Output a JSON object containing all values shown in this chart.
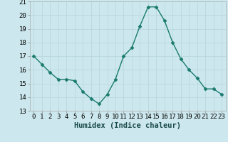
{
  "x": [
    0,
    1,
    2,
    3,
    4,
    5,
    6,
    7,
    8,
    9,
    10,
    11,
    12,
    13,
    14,
    15,
    16,
    17,
    18,
    19,
    20,
    21,
    22,
    23
  ],
  "y": [
    17.0,
    16.4,
    15.8,
    15.3,
    15.3,
    15.2,
    14.4,
    13.9,
    13.5,
    14.2,
    15.3,
    17.0,
    17.6,
    19.2,
    20.6,
    20.6,
    19.6,
    18.0,
    16.8,
    16.0,
    15.4,
    14.6,
    14.6,
    14.2
  ],
  "ylim": [
    13,
    21
  ],
  "xlim": [
    -0.5,
    23.5
  ],
  "yticks": [
    13,
    14,
    15,
    16,
    17,
    18,
    19,
    20,
    21
  ],
  "xtick_labels": [
    "0",
    "1",
    "2",
    "3",
    "4",
    "5",
    "6",
    "7",
    "8",
    "9",
    "10",
    "11",
    "12",
    "13",
    "14",
    "15",
    "16",
    "17",
    "18",
    "19",
    "20",
    "21",
    "22",
    "23"
  ],
  "xlabel": "Humidex (Indice chaleur)",
  "line_color": "#1a7a6e",
  "marker": "D",
  "marker_size": 2.5,
  "background_color": "#cce8ee",
  "grid_color": "#b8d8de",
  "tick_fontsize": 6.5,
  "label_fontsize": 7.5,
  "font_family": "monospace"
}
